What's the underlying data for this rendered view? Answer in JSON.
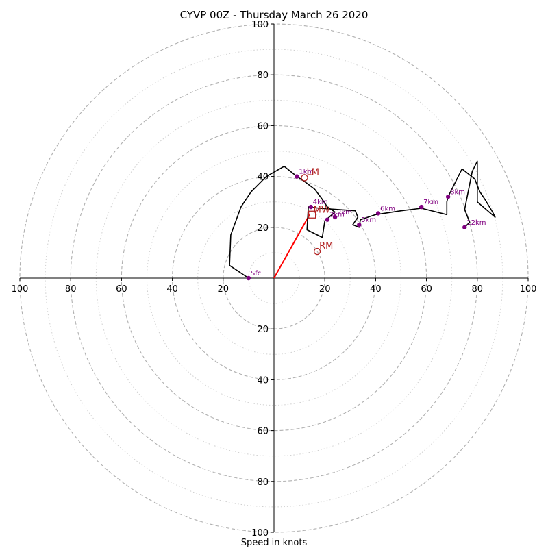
{
  "chart_data": {
    "type": "hodograph",
    "title": "CYVP 00Z - Thursday March 26 2020",
    "xlabel": "Speed in knots",
    "max_speed": 100,
    "ring_major": [
      20,
      40,
      60,
      80,
      100
    ],
    "ring_minor": [
      10,
      30,
      50,
      70,
      90
    ],
    "tick_labels": [
      "20",
      "40",
      "60",
      "80",
      "100"
    ],
    "trace": [
      [
        -10,
        0
      ],
      [
        -17.5,
        5
      ],
      [
        -17,
        17
      ],
      [
        -13,
        28
      ],
      [
        -9,
        34
      ],
      [
        -3,
        40
      ],
      [
        4,
        44
      ],
      [
        9,
        40
      ],
      [
        12,
        38
      ],
      [
        16,
        35
      ],
      [
        19,
        31
      ],
      [
        21,
        28
      ],
      [
        24,
        26
      ],
      [
        20,
        22.5
      ],
      [
        19,
        16
      ],
      [
        13,
        19
      ],
      [
        13.5,
        28
      ],
      [
        18,
        27.5
      ],
      [
        25,
        27
      ],
      [
        32,
        26.5
      ],
      [
        33,
        24
      ],
      [
        31,
        21
      ],
      [
        33.5,
        20
      ],
      [
        34,
        23
      ],
      [
        40,
        25
      ],
      [
        50,
        26.5
      ],
      [
        58,
        27.5
      ],
      [
        68,
        25
      ],
      [
        68,
        30
      ],
      [
        68.5,
        32
      ],
      [
        74,
        43
      ],
      [
        79,
        39
      ],
      [
        81,
        34
      ],
      [
        83,
        31
      ],
      [
        86,
        26
      ],
      [
        87,
        24
      ],
      [
        80,
        30
      ],
      [
        80,
        46
      ],
      [
        78,
        42
      ],
      [
        75,
        27
      ],
      [
        77,
        22
      ],
      [
        75,
        20
      ]
    ],
    "height_markers": [
      {
        "label": "Sfc",
        "u": -10,
        "v": 0
      },
      {
        "label": "1km",
        "u": 9,
        "v": 40
      },
      {
        "label": "2km",
        "u": 24,
        "v": 24
      },
      {
        "label": "3km",
        "u": 21,
        "v": 23
      },
      {
        "label": "4km",
        "u": 14.5,
        "v": 28
      },
      {
        "label": "5km",
        "u": 33.5,
        "v": 21
      },
      {
        "label": "6km",
        "u": 41,
        "v": 25.5
      },
      {
        "label": "7km",
        "u": 58,
        "v": 28
      },
      {
        "label": "8km",
        "u": 68.5,
        "v": 32
      },
      {
        "label": "12km",
        "u": 75,
        "v": 20
      }
    ],
    "storm_motions": [
      {
        "label": "LM",
        "u": 12,
        "v": 39.5
      },
      {
        "label": "RM",
        "u": 17,
        "v": 10.5
      }
    ],
    "mean_wind": {
      "label": "MW",
      "u": 15,
      "v": 25
    },
    "shear_vector": {
      "u": 14,
      "v": 25
    },
    "colors": {
      "trace": "#000000",
      "marker": "#800080",
      "motion": "#b22222",
      "shear": "#ff0000",
      "ring_major": "#b0b0b0",
      "ring_minor": "#cfcfcf"
    }
  }
}
